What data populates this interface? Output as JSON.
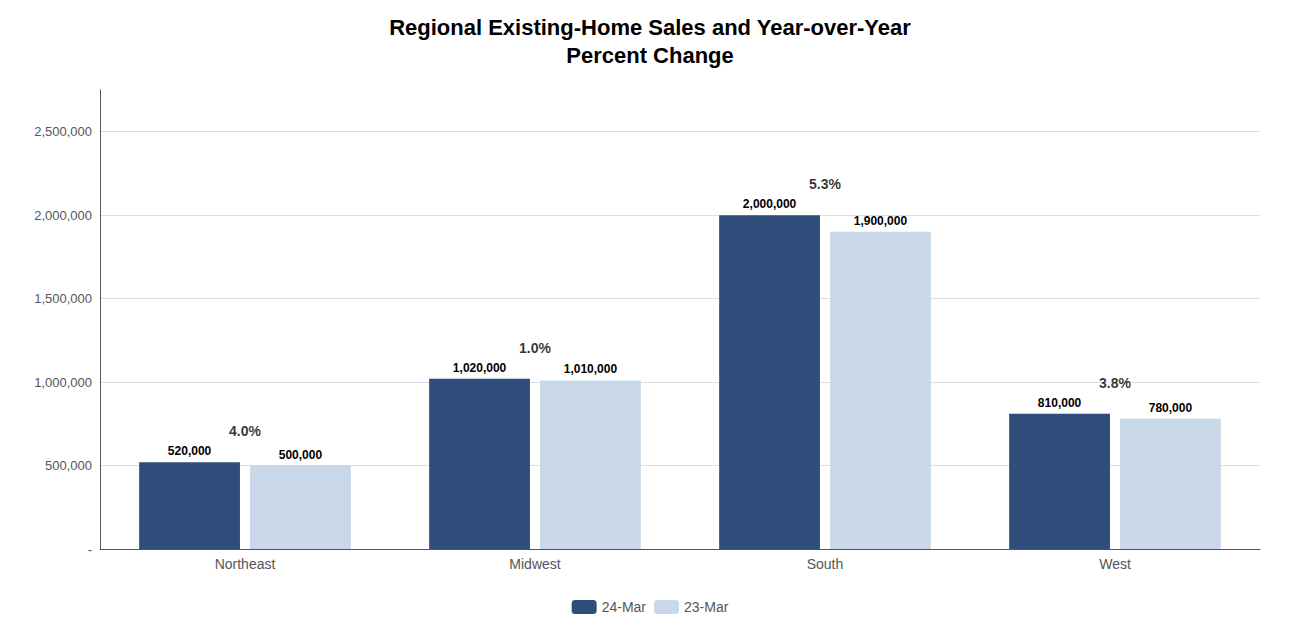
{
  "chart_data": {
    "type": "bar",
    "title": "Regional Existing-Home Sales and Year-over-Year\nPercent Change",
    "categories": [
      "Northeast",
      "Midwest",
      "South",
      "West"
    ],
    "series": [
      {
        "name": "24-Mar",
        "color": "#2E4D7B",
        "values": [
          520000,
          1020000,
          2000000,
          810000
        ],
        "value_labels": [
          "520,000",
          "1,020,000",
          "2,000,000",
          "810,000"
        ]
      },
      {
        "name": "23-Mar",
        "color": "#C8D8E8",
        "values": [
          500000,
          1010000,
          1900000,
          780000
        ],
        "value_labels": [
          "500,000",
          "1,010,000",
          "1,900,000",
          "780,000"
        ]
      }
    ],
    "annotations": [
      {
        "category": "Northeast",
        "text": "4.0%"
      },
      {
        "category": "Midwest",
        "text": "1.0%"
      },
      {
        "category": "South",
        "text": "5.3%"
      },
      {
        "category": "West",
        "text": "3.8%"
      }
    ],
    "ylim": [
      0,
      2750000
    ],
    "yticks": [
      {
        "value": 0,
        "label": "-"
      },
      {
        "value": 500000,
        "label": "500,000"
      },
      {
        "value": 1000000,
        "label": "1,000,000"
      },
      {
        "value": 1500000,
        "label": "1,500,000"
      },
      {
        "value": 2000000,
        "label": "2,000,000"
      },
      {
        "value": 2500000,
        "label": "2,500,000"
      }
    ],
    "grid": true,
    "legend": "bottom",
    "data_labels": true
  }
}
